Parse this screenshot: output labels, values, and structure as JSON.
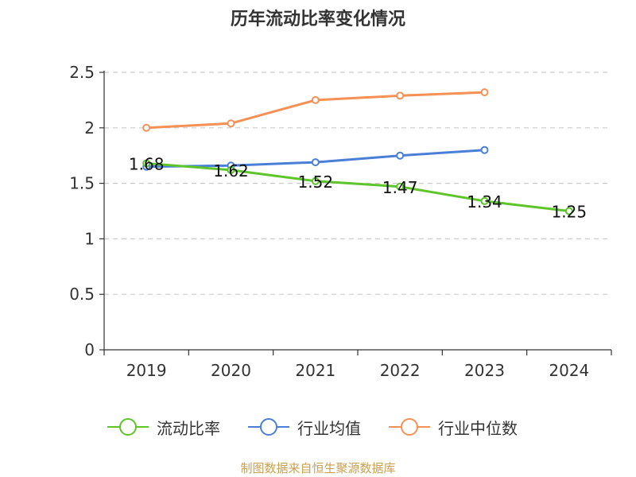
{
  "chart_data": {
    "type": "line",
    "title": "历年流动比率变化情况",
    "categories": [
      "2019",
      "2020",
      "2021",
      "2022",
      "2023",
      "2024"
    ],
    "ylim": [
      0,
      2.5
    ],
    "yticks": [
      "0",
      "0.5",
      "1",
      "1.5",
      "2",
      "2.5"
    ],
    "grid": true,
    "legend_position": "bottom",
    "series": [
      {
        "name": "流动比率",
        "color": "#5dc42a",
        "values": [
          1.68,
          1.62,
          1.52,
          1.47,
          1.34,
          1.25
        ],
        "labels": [
          "1.68",
          "1.62",
          "1.52",
          "1.47",
          "1.34",
          "1.25"
        ]
      },
      {
        "name": "行业均值",
        "color": "#4a7fd8",
        "values": [
          1.65,
          1.66,
          1.69,
          1.75,
          1.8,
          null
        ]
      },
      {
        "name": "行业中位数",
        "color": "#f79055",
        "values": [
          2.0,
          2.04,
          2.25,
          2.29,
          2.32,
          null
        ]
      }
    ]
  },
  "legend": {
    "items": [
      "流动比率",
      "行业均值",
      "行业中位数"
    ]
  },
  "footer": {
    "source": "制图数据来自恒生聚源数据库"
  }
}
